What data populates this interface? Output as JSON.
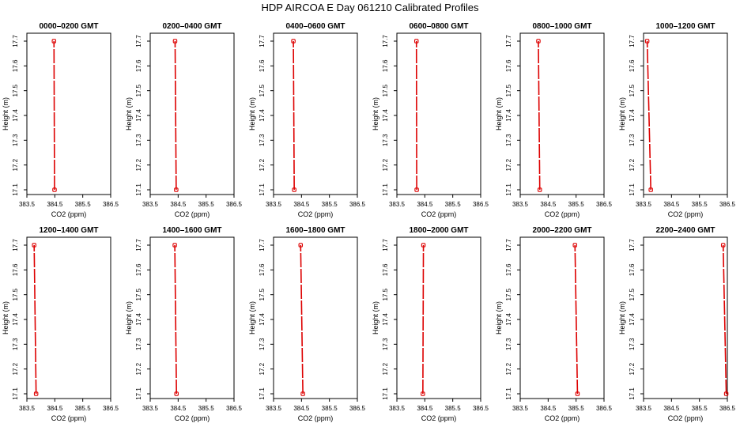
{
  "title": "HDP  AIRCOA E  Day 061210  Calibrated Profiles",
  "chart_data": {
    "type": "line",
    "xlabel": "CO2 (ppm)",
    "ylabel": "Height (m)",
    "xlim": [
      383.5,
      386.5
    ],
    "ylim": [
      17.1,
      17.7
    ],
    "xticks": [
      "383.5",
      "384.5",
      "385.5",
      "386.5"
    ],
    "yticks": [
      "17.1",
      "17.2",
      "17.3",
      "17.4",
      "17.5",
      "17.6",
      "17.7"
    ],
    "line_color": "#dd0000",
    "marker_color": "#dd0000",
    "panels": [
      {
        "title": "0000–0200 GMT",
        "points": [
          [
            384.49,
            17.1
          ],
          [
            384.47,
            17.7
          ]
        ]
      },
      {
        "title": "0200–0400 GMT",
        "points": [
          [
            384.43,
            17.1
          ],
          [
            384.39,
            17.7
          ]
        ]
      },
      {
        "title": "0400–0600 GMT",
        "points": [
          [
            384.24,
            17.1
          ],
          [
            384.21,
            17.7
          ]
        ]
      },
      {
        "title": "0600–0800 GMT",
        "points": [
          [
            384.21,
            17.1
          ],
          [
            384.2,
            17.7
          ]
        ]
      },
      {
        "title": "0800–1000 GMT",
        "points": [
          [
            384.2,
            17.1
          ],
          [
            384.15,
            17.7
          ]
        ]
      },
      {
        "title": "1000–1200 GMT",
        "points": [
          [
            383.76,
            17.1
          ],
          [
            383.63,
            17.7
          ]
        ]
      },
      {
        "title": "1200–1400 GMT",
        "points": [
          [
            383.83,
            17.1
          ],
          [
            383.76,
            17.7
          ]
        ]
      },
      {
        "title": "1400–1600 GMT",
        "points": [
          [
            384.44,
            17.1
          ],
          [
            384.38,
            17.7
          ]
        ]
      },
      {
        "title": "1600–1800 GMT",
        "points": [
          [
            384.55,
            17.1
          ],
          [
            384.47,
            17.7
          ]
        ]
      },
      {
        "title": "1800–2000 GMT",
        "points": [
          [
            384.43,
            17.1
          ],
          [
            384.45,
            17.7
          ]
        ]
      },
      {
        "title": "2000–2200 GMT",
        "points": [
          [
            385.55,
            17.1
          ],
          [
            385.46,
            17.7
          ]
        ]
      },
      {
        "title": "2200–2400 GMT",
        "points": [
          [
            386.46,
            17.1
          ],
          [
            386.35,
            17.7
          ]
        ]
      }
    ]
  }
}
